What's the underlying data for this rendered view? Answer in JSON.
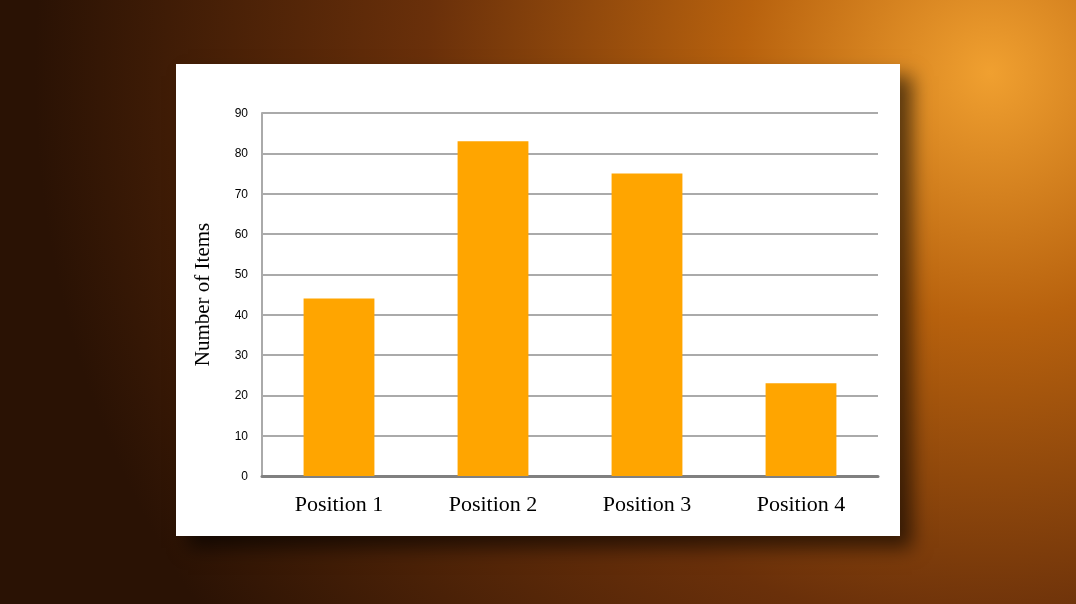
{
  "chart_data": {
    "type": "bar",
    "categories": [
      "Position 1",
      "Position 2",
      "Position 3",
      "Position 4"
    ],
    "values": [
      44,
      83,
      75,
      23
    ],
    "color": "#ffa500",
    "ylabel": "Number of Items",
    "ylim": [
      0,
      90
    ],
    "yticks": [
      0,
      10,
      20,
      30,
      40,
      50,
      60,
      70,
      80,
      90
    ],
    "grid": "y"
  }
}
